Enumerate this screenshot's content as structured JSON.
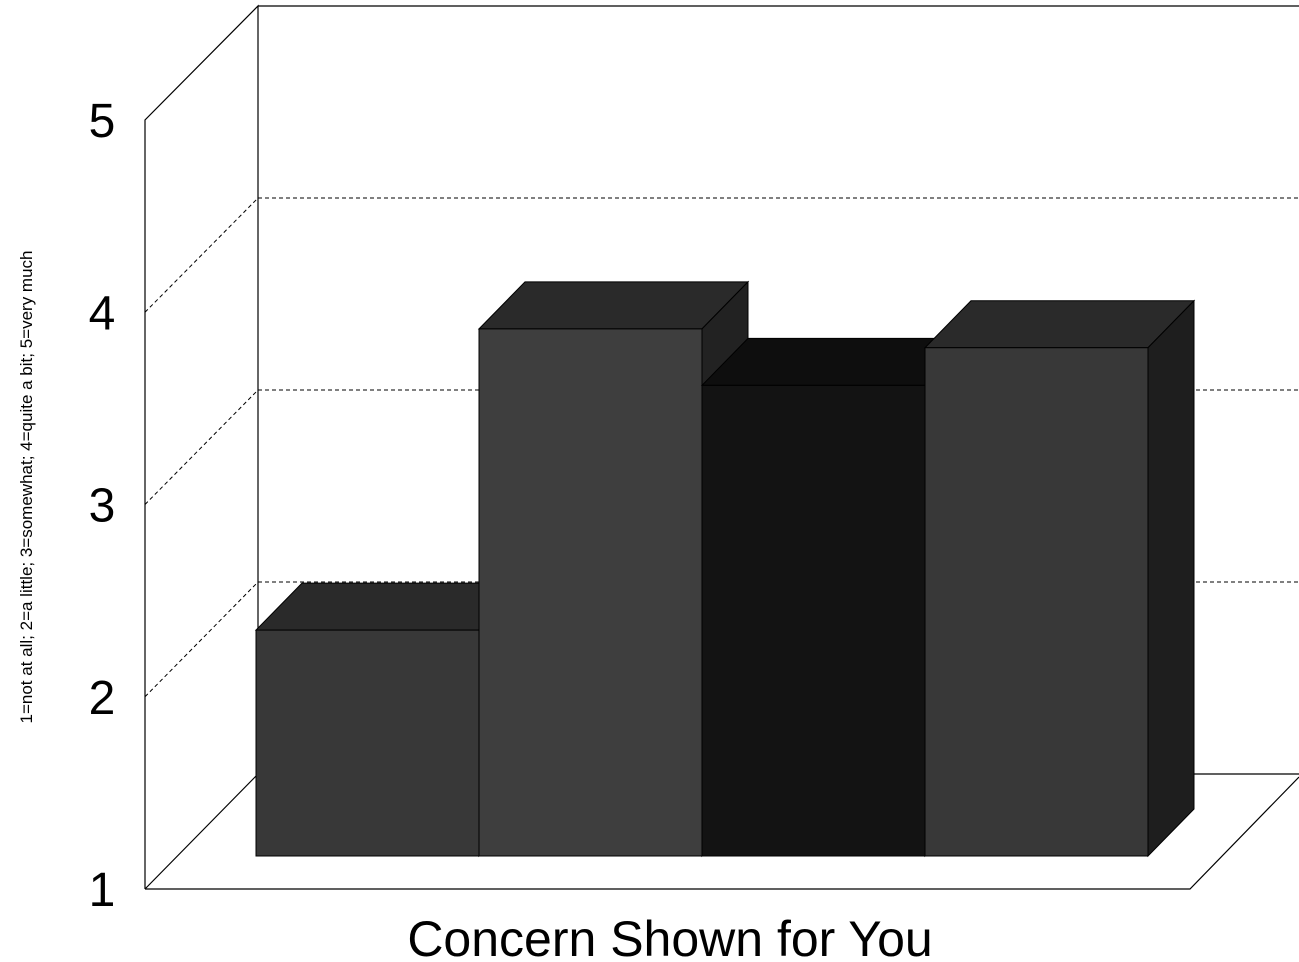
{
  "chart_data": {
    "type": "bar",
    "style": "3d",
    "title": "",
    "xlabel": "Concern Shown for You",
    "ylabel": "1=not at all; 2=a little; 3=somewhat; 4=quite a bit; 5=very much",
    "ylim": [
      1,
      5
    ],
    "yticks": [
      "1",
      "2",
      "3",
      "4",
      "5"
    ],
    "grid": true,
    "legend": "none",
    "categories": [
      "",
      "",
      "",
      ""
    ],
    "values": [
      2.2,
      3.8,
      3.5,
      3.7
    ],
    "colors": {
      "front": [
        "#383838",
        "#3e3e3e",
        "#131313",
        "#383838"
      ],
      "top": [
        "#2a2a2a",
        "#2a2a2a",
        "#0e0e0e",
        "#2a2a2a"
      ],
      "side": [
        "#2a2a2a",
        "#222222",
        "#0e0e0e",
        "#1e1e1e"
      ]
    }
  }
}
